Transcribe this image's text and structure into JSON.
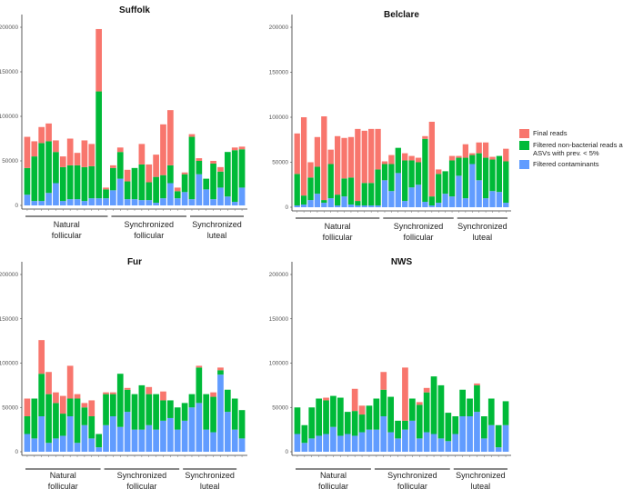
{
  "legend": {
    "items": [
      {
        "label": "Final reads",
        "color": "#F8766D"
      },
      {
        "label": "Filtered non-bacterial reads and ASVs with prev. < 5%",
        "color": "#00BA38"
      },
      {
        "label": "Filtered contaminants",
        "color": "#619CFF"
      }
    ]
  },
  "chart_data": [
    {
      "type": "bar",
      "stacked": true,
      "title": "Suffolk",
      "ylim": [
        0,
        200000
      ],
      "yticks": [
        "0",
        "50000",
        "100000",
        "150000",
        "200000"
      ],
      "groups": [
        {
          "label_line1": "Natural",
          "label_line2": "follicular",
          "count": 12
        },
        {
          "label_line1": "Synchronized",
          "label_line2": "follicular",
          "count": 11
        },
        {
          "label_line1": "Synchronized",
          "label_line2": "luteal",
          "count": 8
        }
      ],
      "series_names": [
        "Filtered contaminants",
        "Filtered non-bacterial reads and ASVs with prev. < 5%",
        "Final reads"
      ],
      "contaminants": [
        12000,
        5000,
        5000,
        14000,
        25000,
        5000,
        7000,
        7000,
        5000,
        8000,
        8000,
        8000,
        17000,
        30000,
        7000,
        7000,
        6000,
        6000,
        3000,
        8000,
        25000,
        8000,
        15000,
        7000,
        35000,
        18000,
        7000,
        20000,
        10000,
        4000,
        20000
      ],
      "nonbacterial": [
        30000,
        50000,
        65000,
        58000,
        35000,
        38000,
        38000,
        38000,
        38000,
        36000,
        120000,
        10000,
        25000,
        30000,
        20000,
        35000,
        40000,
        20000,
        29000,
        26000,
        20000,
        8000,
        20000,
        70000,
        15000,
        12000,
        40000,
        18000,
        50000,
        58000,
        43000
      ],
      "final": [
        35000,
        17000,
        18000,
        20000,
        13000,
        12000,
        30000,
        14000,
        30000,
        25000,
        70000,
        2000,
        3000,
        5000,
        13000,
        0,
        23000,
        20000,
        25000,
        57000,
        62000,
        4000,
        2000,
        3000,
        3000,
        0,
        3000,
        5000,
        0,
        3000,
        3000
      ],
      "group_labels": [
        "Natural\nfollicular",
        "Synchronized\nfollicular",
        "Synchronized\nluteal"
      ]
    },
    {
      "type": "bar",
      "stacked": true,
      "title": "Belclare",
      "ylim": [
        0,
        200000
      ],
      "yticks": [
        "0",
        "50000",
        "100000",
        "150000",
        "200000"
      ],
      "groups": [
        {
          "label_line1": "Natural",
          "label_line2": "follicular",
          "count": 13
        },
        {
          "label_line1": "Synchronized",
          "label_line2": "follicular",
          "count": 11
        },
        {
          "label_line1": "Synchronized",
          "label_line2": "luteal",
          "count": 8
        }
      ],
      "contaminants": [
        2000,
        3000,
        8000,
        15000,
        5000,
        10000,
        2000,
        12000,
        3000,
        2000,
        2000,
        2000,
        2000,
        30000,
        18000,
        38000,
        7000,
        22000,
        25000,
        6000,
        2000,
        5000,
        15000,
        12000,
        35000,
        10000,
        48000,
        30000,
        10000,
        18000,
        17000,
        5000
      ],
      "nonbacterial": [
        35000,
        10000,
        25000,
        30000,
        3000,
        38000,
        12000,
        20000,
        30000,
        5000,
        25000,
        25000,
        40000,
        18000,
        30000,
        28000,
        45000,
        30000,
        25000,
        70000,
        10000,
        32000,
        25000,
        40000,
        20000,
        45000,
        10000,
        30000,
        45000,
        35000,
        40000,
        46000
      ],
      "final": [
        45000,
        87000,
        17000,
        33000,
        93000,
        16000,
        65000,
        45000,
        45000,
        80000,
        58000,
        60000,
        45000,
        3000,
        10000,
        0,
        8000,
        5000,
        5000,
        3000,
        83000,
        5000,
        0,
        5000,
        2000,
        15000,
        2000,
        12000,
        17000,
        3000,
        0,
        14000
      ],
      "group_labels": [
        "Natural\nfollicular",
        "Synchronized\nfollicular",
        "Synchronized\nluteal"
      ]
    },
    {
      "type": "bar",
      "stacked": true,
      "title": "Fur",
      "ylim": [
        0,
        200000
      ],
      "yticks": [
        "0",
        "50000",
        "100000",
        "150000",
        "200000"
      ],
      "groups": [
        {
          "label_line1": "Natural",
          "label_line2": "follicular",
          "count": 11
        },
        {
          "label_line1": "Synchronized",
          "label_line2": "follicular",
          "count": 11
        },
        {
          "label_line1": "Synchronized",
          "label_line2": "luteal",
          "count": 8
        }
      ],
      "contaminants": [
        20000,
        15000,
        40000,
        10000,
        15000,
        18000,
        40000,
        10000,
        30000,
        15000,
        5000,
        30000,
        40000,
        28000,
        45000,
        25000,
        25000,
        30000,
        25000,
        35000,
        38000,
        25000,
        35000,
        50000,
        55000,
        25000,
        22000,
        87000,
        45000,
        25000,
        15000
      ],
      "nonbacterial": [
        20000,
        45000,
        48000,
        55000,
        40000,
        25000,
        20000,
        50000,
        20000,
        25000,
        15000,
        35000,
        25000,
        60000,
        25000,
        40000,
        50000,
        35000,
        40000,
        23000,
        20000,
        25000,
        20000,
        15000,
        40000,
        40000,
        40000,
        5000,
        25000,
        35000,
        32000
      ],
      "final": [
        20000,
        0,
        38000,
        25000,
        12000,
        20000,
        37000,
        5000,
        5000,
        18000,
        0,
        2000,
        2000,
        0,
        2000,
        0,
        0,
        8000,
        0,
        10000,
        0,
        0,
        0,
        0,
        2000,
        0,
        5000,
        3000,
        0,
        0,
        0
      ],
      "group_labels": [
        "Natural\nfollicular",
        "Synchronized\nfollicular",
        "Synchronized\nluteal"
      ]
    },
    {
      "type": "bar",
      "stacked": true,
      "title": "NWS",
      "ylim": [
        0,
        200000
      ],
      "yticks": [
        "0",
        "50000",
        "100000",
        "150000",
        "200000"
      ],
      "groups": [
        {
          "label_line1": "Natural",
          "label_line2": "follicular",
          "count": 11
        },
        {
          "label_line1": "Synchronized",
          "label_line2": "follicular",
          "count": 11
        },
        {
          "label_line1": "Synchronized",
          "label_line2": "luteal",
          "count": 8
        }
      ],
      "contaminants": [
        20000,
        10000,
        15000,
        18000,
        20000,
        28000,
        18000,
        20000,
        18000,
        22000,
        25000,
        25000,
        40000,
        22000,
        15000,
        25000,
        35000,
        15000,
        22000,
        20000,
        15000,
        12000,
        20000,
        40000,
        40000,
        45000,
        15000,
        30000,
        5000,
        30000
      ],
      "nonbacterial": [
        30000,
        20000,
        35000,
        42000,
        38000,
        35000,
        43000,
        25000,
        28000,
        20000,
        27000,
        35000,
        30000,
        40000,
        20000,
        10000,
        25000,
        38000,
        45000,
        65000,
        60000,
        32000,
        20000,
        30000,
        20000,
        30000,
        25000,
        30000,
        25000,
        27000
      ],
      "final": [
        0,
        0,
        0,
        0,
        3000,
        0,
        0,
        0,
        25000,
        10000,
        0,
        0,
        20000,
        0,
        0,
        60000,
        0,
        3000,
        5000,
        0,
        0,
        0,
        0,
        0,
        0,
        2000,
        0,
        0,
        0,
        0
      ],
      "group_labels": [
        "Natural\nfollicular",
        "Synchronized\nfollicular",
        "Synchronized\nluteal"
      ]
    }
  ]
}
